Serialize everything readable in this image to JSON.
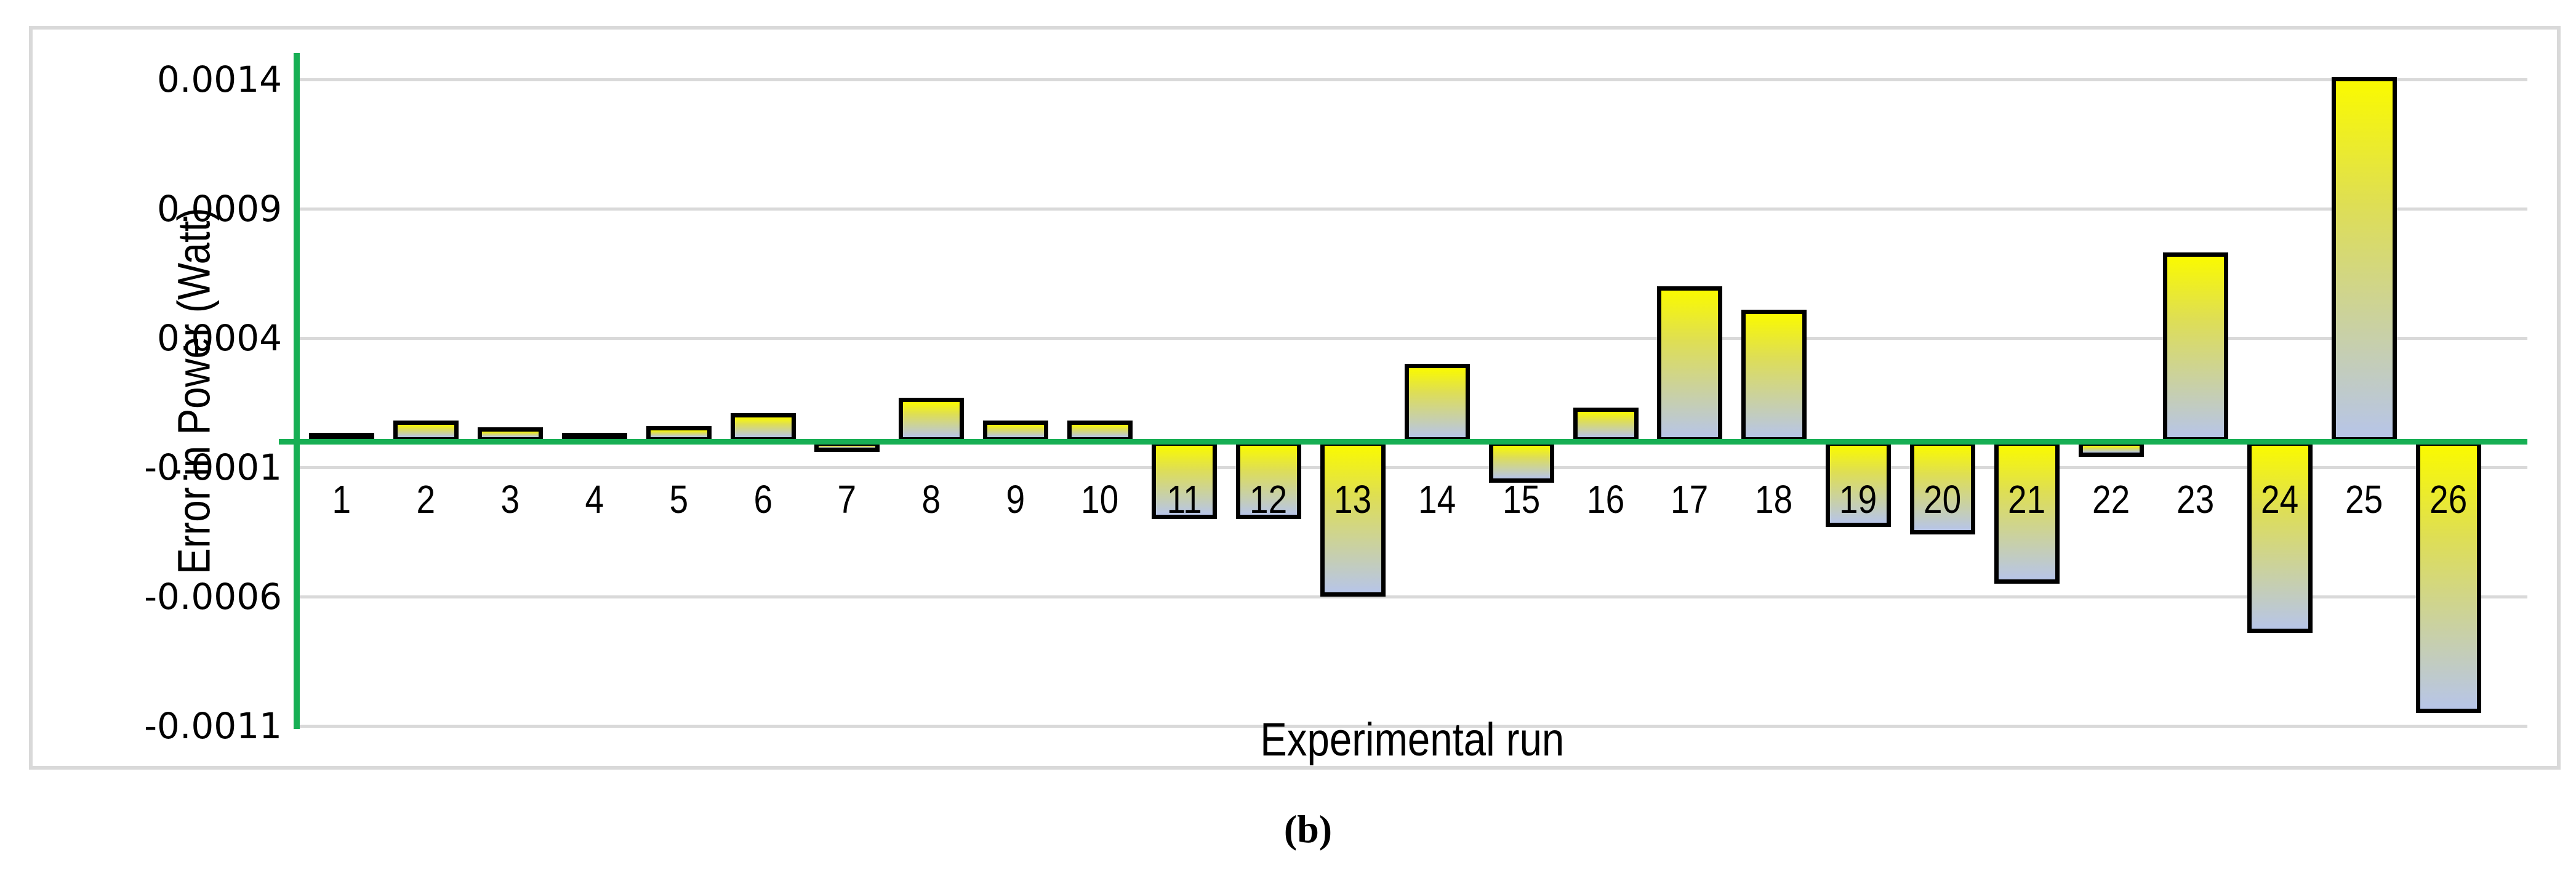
{
  "figure_label": "(b)",
  "chart_data": {
    "type": "bar",
    "title": "",
    "xlabel": "Experimental run",
    "ylabel": "Error in Power (Watt)",
    "categories": [
      "1",
      "2",
      "3",
      "4",
      "5",
      "6",
      "7",
      "8",
      "9",
      "10",
      "11",
      "12",
      "13",
      "14",
      "15",
      "16",
      "17",
      "18",
      "19",
      "20",
      "21",
      "22",
      "23",
      "24",
      "25",
      "26"
    ],
    "values": [
      1e-05,
      8e-05,
      5.5e-05,
      1e-05,
      6e-05,
      0.00011,
      -4e-05,
      0.00017,
      8e-05,
      8e-05,
      -0.0003,
      -0.0003,
      -0.0006,
      0.0003,
      -0.00016,
      0.00013,
      0.0006,
      0.00051,
      -0.00033,
      -0.00036,
      -0.00055,
      -6e-05,
      0.00073,
      -0.00074,
      0.00141,
      -0.00105
    ],
    "ylim": [
      -0.0011,
      0.0014
    ],
    "yticks": [
      0.0014,
      0.0009,
      0.0004,
      -0.0001,
      -0.0006,
      -0.0011
    ],
    "ytick_labels": [
      "0.0014",
      "0.0009",
      "0.0004",
      "-0.0001",
      "-0.0006",
      "-0.0011"
    ],
    "grid": true,
    "legend": false,
    "colors": {
      "axis_green": "#17af54",
      "gridline_gray": "#d9d9d9",
      "bar_gradient_top": "#fafa00",
      "bar_gradient_bottom": "#b7c5e8",
      "bar_border": "#000000",
      "text": "#000000"
    }
  }
}
